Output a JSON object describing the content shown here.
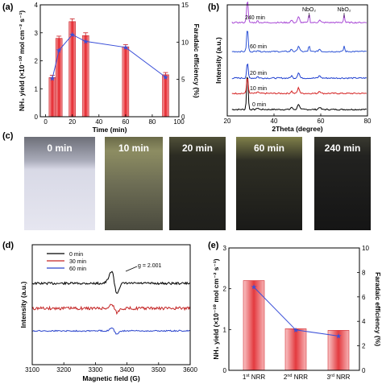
{
  "panel_labels": {
    "a": "(a)",
    "b": "(b)",
    "c": "(c)",
    "d": "(d)",
    "e": "(e)"
  },
  "chart_data": [
    {
      "id": "a",
      "type": "bar",
      "x_label": "Time (min)",
      "y_label": "NH₃ yield (×10⁻¹⁰ mol cm⁻² s⁻¹)",
      "y2_label": "Faradaic efficiency (%)",
      "x_ticks": [
        0,
        20,
        40,
        60,
        80,
        100
      ],
      "y_ticks": [
        0,
        1,
        2,
        3,
        4
      ],
      "y2_ticks": [
        0,
        5,
        10,
        15
      ],
      "xlim": [
        -4,
        100
      ],
      "ylim": [
        0,
        4
      ],
      "y2lim": [
        0,
        15
      ],
      "x": [
        5,
        10,
        20,
        30,
        60,
        90
      ],
      "bar_values": [
        1.4,
        2.8,
        3.4,
        2.9,
        2.5,
        1.5
      ],
      "bar_errors": [
        0.08,
        0.08,
        0.1,
        0.1,
        0.08,
        0.08
      ],
      "line_values": [
        5.1,
        8.9,
        11.0,
        10.1,
        9.3,
        5.3
      ],
      "colors": {
        "bar": "#e8363c",
        "line": "#3a4fd8"
      }
    },
    {
      "id": "b",
      "type": "line",
      "x_label": "2Theta (degree)",
      "y_label": "Intensity (a.u.)",
      "x_ticks": [
        20,
        40,
        60,
        80
      ],
      "xlim": [
        20,
        80
      ],
      "peak_labels": [
        "NbO₂",
        "NbO₂"
      ],
      "peak_positions": [
        55,
        70
      ],
      "series": [
        {
          "name": "0 min",
          "color": "#000000",
          "offset": 0
        },
        {
          "name": "10 min",
          "color": "#d42020",
          "offset": 1
        },
        {
          "name": "20 min",
          "color": "#2040d0",
          "offset": 2
        },
        {
          "name": "60 min",
          "color": "#2e54d6",
          "offset": 3
        },
        {
          "name": "240 min",
          "color": "#a94ad6",
          "offset": 4
        }
      ]
    },
    {
      "id": "d",
      "type": "line",
      "x_label": "Magnetic field (G)",
      "y_label": "Intensity (a.u.)",
      "x_ticks": [
        3100,
        3200,
        3300,
        3400,
        3500,
        3600
      ],
      "xlim": [
        3100,
        3600
      ],
      "annotation": "g = 2.001",
      "series": [
        {
          "name": "0 min",
          "color": "#000000"
        },
        {
          "name": "30 min",
          "color": "#c42424"
        },
        {
          "name": "60 min",
          "color": "#2a44cc"
        }
      ]
    },
    {
      "id": "e",
      "type": "bar",
      "y_label": "NH₃ yield (×10⁻¹⁰ mol cm⁻² s⁻¹)",
      "y2_label": "Faradaic efficiency (%)",
      "categories": [
        "1st NRR",
        "2nd NRR",
        "3rd NRR"
      ],
      "category_parts": [
        [
          "1",
          "st",
          " NRR"
        ],
        [
          "2",
          "nd",
          " NRR"
        ],
        [
          "3",
          "rd",
          " NRR"
        ]
      ],
      "y_ticks": [
        0,
        1,
        2,
        3
      ],
      "y2_ticks": [
        0,
        2,
        4,
        6,
        8,
        10
      ],
      "ylim": [
        0,
        3
      ],
      "y2lim": [
        0,
        10
      ],
      "bar_values": [
        2.2,
        1.02,
        0.98
      ],
      "line_values": [
        6.8,
        3.3,
        2.8
      ],
      "colors": {
        "bar": "#e8363c",
        "line": "#3a4fd8"
      }
    }
  ],
  "photos": {
    "labels": [
      "0 min",
      "10 min",
      "20 min",
      "60 min",
      "240 min"
    ]
  }
}
